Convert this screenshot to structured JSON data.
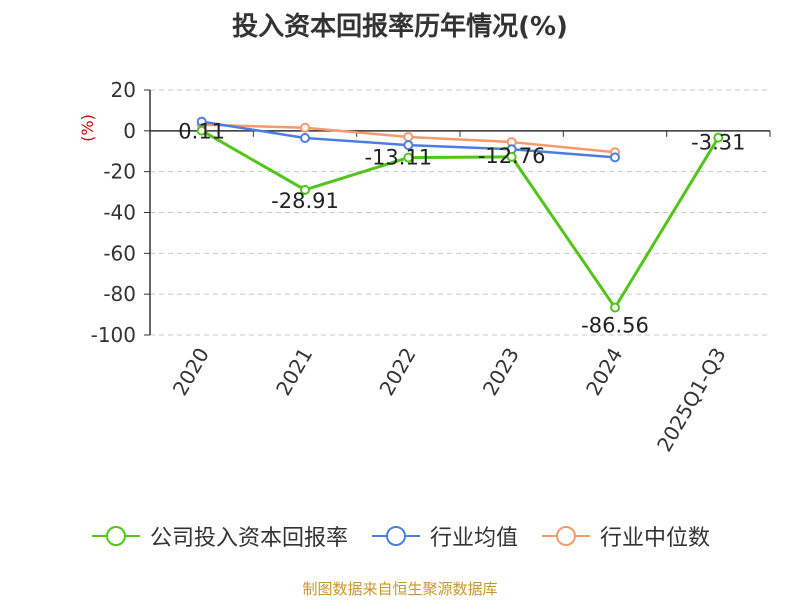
{
  "title": "投入资本回报率历年情况(%)",
  "unit_label": "(%)",
  "source": "制图数据来自恒生聚源数据库",
  "colors": {
    "company": "#52c41a",
    "industry_avg": "#4a7fe0",
    "industry_median": "#f59a6a"
  },
  "chart_data": {
    "type": "line",
    "title": "投入资本回报率历年情况(%)",
    "xlabel": "",
    "ylabel": "(%)",
    "ylim": [
      -100,
      20
    ],
    "yticks": [
      "20",
      "0",
      "-20",
      "-40",
      "-60",
      "-80",
      "-100"
    ],
    "categories": [
      "2020",
      "2021",
      "2022",
      "2023",
      "2024",
      "2025Q1-Q3"
    ],
    "grid": true,
    "legend_position": "bottom",
    "series": [
      {
        "name": "公司投入资本回报率",
        "color": "#52c41a",
        "values": [
          0.11,
          -28.91,
          -13.11,
          -12.76,
          -86.56,
          -3.31
        ],
        "labels": [
          "0.11",
          "-28.91",
          "-13.11",
          "-12.76",
          "-86.56",
          "-3.31"
        ]
      },
      {
        "name": "行业均值",
        "color": "#4a7fe0",
        "values": [
          4.5,
          -3.5,
          -7.0,
          -9.0,
          -13.0,
          null
        ]
      },
      {
        "name": "行业中位数",
        "color": "#f59a6a",
        "values": [
          3.0,
          1.5,
          -3.0,
          -5.5,
          -10.5,
          null
        ]
      }
    ]
  }
}
